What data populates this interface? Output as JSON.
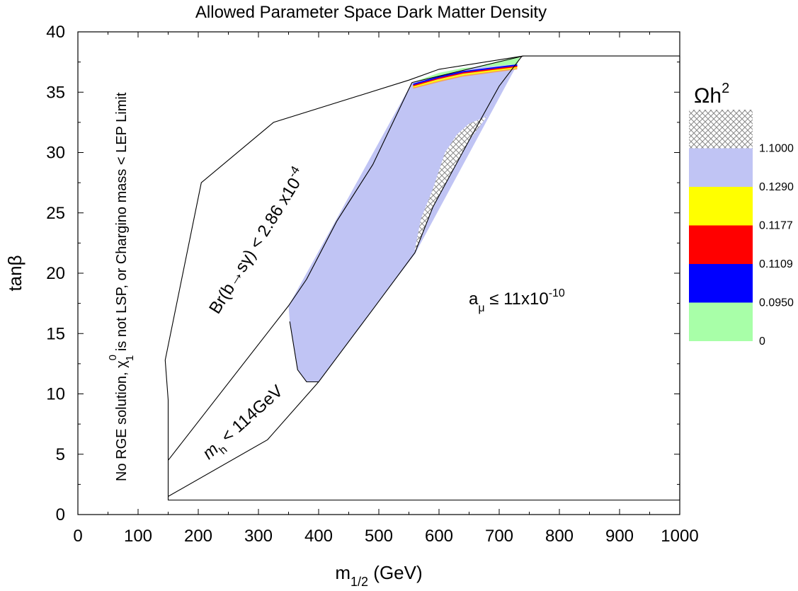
{
  "chart_data": {
    "type": "area",
    "title": "Allowed Parameter Space Dark Matter Density",
    "xlabel": {
      "main": "m",
      "sub": "1/2",
      "unit": " (GeV)"
    },
    "ylabel": "tanβ",
    "xlim": [
      0,
      1000
    ],
    "ylim": [
      0,
      40
    ],
    "x_ticks": [
      0,
      100,
      200,
      300,
      400,
      500,
      600,
      700,
      800,
      900,
      1000
    ],
    "y_ticks": [
      0,
      5,
      10,
      15,
      20,
      25,
      30,
      35,
      40
    ],
    "grid": false,
    "colors": {
      "hatch": "#9a9a9a",
      "blue_region": "#c0c4f4",
      "yellow": "#ffff00",
      "red": "#ff0000",
      "blue": "#0000ff",
      "green": "#a8ffa8",
      "orange": "#f4a060",
      "line": "#000000"
    },
    "regions": {
      "outer_boundary": [
        [
          150,
          1.2
        ],
        [
          1000,
          1.2
        ],
        [
          1000,
          38
        ],
        [
          740,
          38
        ],
        [
          600,
          36.9
        ],
        [
          550,
          36
        ],
        [
          325,
          32.5
        ],
        [
          205,
          27.5
        ],
        [
          145,
          12.8
        ],
        [
          150,
          9.5
        ],
        [
          150,
          1.2
        ]
      ],
      "mh_boundary": [
        [
          150,
          1.5
        ],
        [
          315,
          6.2
        ],
        [
          400,
          11
        ],
        [
          490,
          17
        ],
        [
          560,
          21.7
        ],
        [
          590,
          25.5
        ],
        [
          650,
          31
        ],
        [
          700,
          35.5
        ],
        [
          738,
          38
        ]
      ],
      "bsg_boundary": [
        [
          150,
          4.5
        ],
        [
          350,
          17.3
        ],
        [
          380,
          19.5
        ],
        [
          430,
          24.3
        ],
        [
          490,
          29
        ],
        [
          555,
          35.8
        ]
      ],
      "blue_relic_region": [
        [
          350,
          17.3
        ],
        [
          555,
          35.8
        ],
        [
          600,
          36.6
        ],
        [
          640,
          37
        ],
        [
          730,
          37.3
        ],
        [
          560,
          21.6
        ],
        [
          490,
          17
        ],
        [
          400,
          11
        ],
        [
          380,
          11
        ],
        [
          365,
          12
        ],
        [
          352,
          16
        ]
      ],
      "green_band": [
        [
          555,
          35.8
        ],
        [
          735,
          38
        ],
        [
          730,
          37.3
        ],
        [
          640,
          37
        ],
        [
          600,
          36.6
        ]
      ],
      "hatched_region": [
        [
          560,
          22
        ],
        [
          570,
          24.5
        ],
        [
          590,
          27
        ],
        [
          610,
          30
        ],
        [
          630,
          31.5
        ],
        [
          650,
          32.4
        ],
        [
          680,
          33
        ],
        [
          650,
          31
        ],
        [
          590,
          25.5
        ],
        [
          560,
          21.7
        ]
      ],
      "thin_bands": [
        {
          "color": "yellow",
          "points": [
            [
              557,
              35.45
            ],
            [
              600,
              36.0
            ],
            [
              640,
              36.45
            ],
            [
              730,
              37.05
            ]
          ]
        },
        {
          "color": "red",
          "points": [
            [
              557,
              35.55
            ],
            [
              600,
              36.15
            ],
            [
              640,
              36.6
            ],
            [
              730,
              37.15
            ]
          ]
        },
        {
          "color": "blue",
          "points": [
            [
              557,
              35.65
            ],
            [
              600,
              36.25
            ],
            [
              640,
              36.7
            ],
            [
              730,
              37.25
            ]
          ]
        }
      ]
    },
    "annotations": {
      "no_rge": {
        "text": "No RGE solution, ",
        "chi": "χ",
        "chi_sup": "0",
        "chi_sub": "1",
        "rest": " is not LSP, or Chargino mass < LEP Limit"
      },
      "bsg": {
        "main": "Br(b→sγ) < 2.86 x10",
        "exp": "-4"
      },
      "mh": {
        "m": "m",
        "sub": "h",
        "rest": " < 114GeV"
      },
      "amu": {
        "a": "a",
        "sub": "μ",
        "rest": " ≤ 11x10",
        "exp": "-10"
      }
    },
    "legend": {
      "title": "Ωh",
      "title_exp": "2",
      "placement": "right",
      "entries": [
        {
          "fill": "hatch",
          "label": ""
        },
        {
          "fill": "blue_region",
          "label": "1.1000"
        },
        {
          "fill": "yellow",
          "label": "0.1290"
        },
        {
          "fill": "red",
          "label": "0.1177"
        },
        {
          "fill": "blue",
          "label": "0.1109"
        },
        {
          "fill": "green",
          "label": "0.0950"
        },
        {
          "fill": "",
          "label": "0"
        }
      ]
    }
  }
}
